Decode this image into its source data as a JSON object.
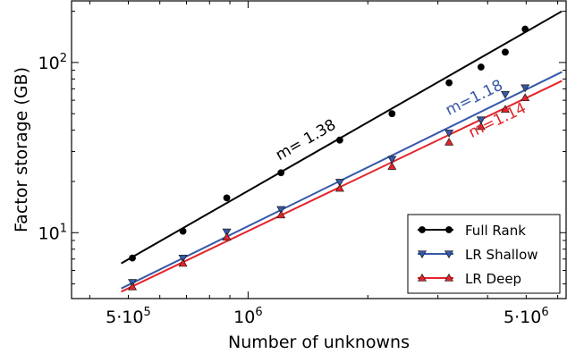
{
  "chart_data": {
    "type": "line",
    "x_scale": "log",
    "y_scale": "log",
    "xlabel": "Number of unknowns",
    "ylabel": "Factor storage (GB)",
    "xlim": [
      360000,
      6300000
    ],
    "ylim": [
      4.1,
      230
    ],
    "x_tick_labels": [
      {
        "value": 500000,
        "base": "5·10",
        "exp": "5"
      },
      {
        "value": 1000000,
        "base": "10",
        "exp": "6"
      },
      {
        "value": 5000000,
        "base": "5·10",
        "exp": "6"
      }
    ],
    "y_tick_labels": [
      {
        "value": 10,
        "base": "10",
        "exp": "1"
      },
      {
        "value": 100,
        "base": "10",
        "exp": "2"
      }
    ],
    "grid": false,
    "legend_position": "bottom-right",
    "series": [
      {
        "name": "Full Rank",
        "color": "#000000",
        "marker": "circle",
        "x": [
          512000,
          686000,
          884000,
          1210000,
          1700000,
          2300000,
          3200000,
          3850000,
          4430000,
          4970000
        ],
        "y": [
          7.1,
          10.2,
          16,
          22.5,
          35,
          50,
          76,
          94,
          115,
          157
        ],
        "fit_x": [
          480000,
          6150000
        ],
        "fit_y": [
          6.6,
          200
        ],
        "slope_label": "m= 1.38"
      },
      {
        "name": "LR Shallow",
        "color": "#3558a8",
        "marker": "triangle-down",
        "x": [
          512000,
          686000,
          884000,
          1210000,
          1700000,
          2300000,
          3200000,
          3850000,
          4430000,
          4970000
        ],
        "y": [
          5.1,
          7.1,
          10.1,
          13.7,
          19.8,
          27,
          38.5,
          46,
          65,
          71
        ],
        "fit_x": [
          480000,
          6150000
        ],
        "fit_y": [
          4.7,
          88
        ],
        "slope_label": "m=1.18"
      },
      {
        "name": "LR Deep",
        "color": "#e3242b",
        "marker": "triangle-up",
        "x": [
          512000,
          686000,
          884000,
          1210000,
          1700000,
          2300000,
          3200000,
          3850000,
          4430000,
          4970000
        ],
        "y": [
          4.8,
          6.6,
          9.4,
          12.7,
          18.2,
          24.5,
          34,
          42,
          53,
          62
        ],
        "fit_x": [
          480000,
          6150000
        ],
        "fit_y": [
          4.5,
          78
        ],
        "slope_label": "m=1.14"
      }
    ]
  }
}
